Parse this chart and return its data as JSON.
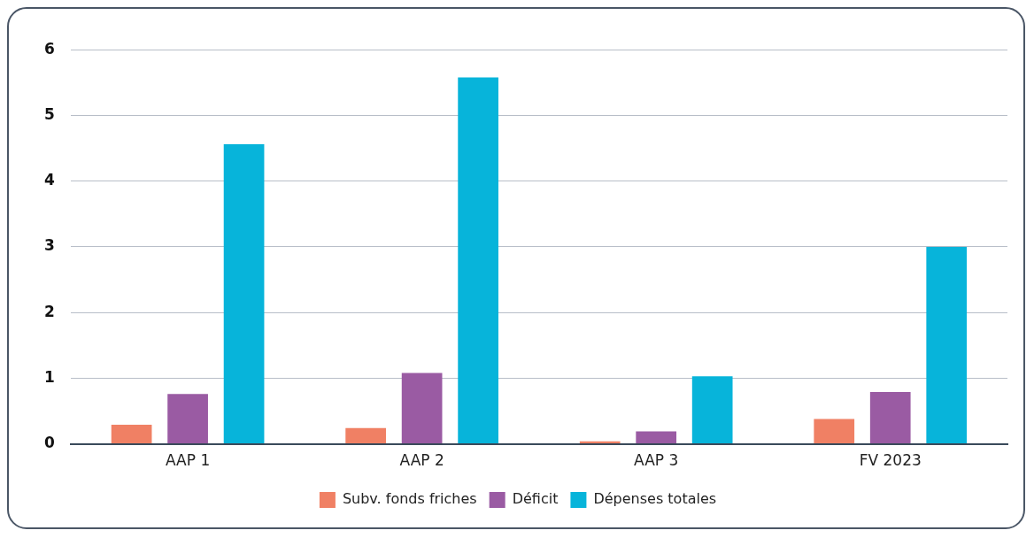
{
  "chart_data": {
    "type": "bar",
    "categories": [
      "AAP 1",
      "AAP 2",
      "AAP 3",
      "FV 2023"
    ],
    "series": [
      {
        "name": "Subv. fonds friches",
        "color": "#f08064",
        "values": [
          0.29,
          0.24,
          0.04,
          0.38
        ]
      },
      {
        "name": "Déficit",
        "color": "#9a5ba3",
        "values": [
          0.76,
          1.08,
          0.19,
          0.79
        ]
      },
      {
        "name": "Dépenses totales",
        "color": "#07b4da",
        "values": [
          4.56,
          5.58,
          1.03,
          3.0
        ]
      }
    ],
    "ylim": [
      0,
      6
    ],
    "yticks": [
      0,
      1,
      2,
      3,
      4,
      5,
      6
    ],
    "grid": "y",
    "legend": "bottom"
  }
}
